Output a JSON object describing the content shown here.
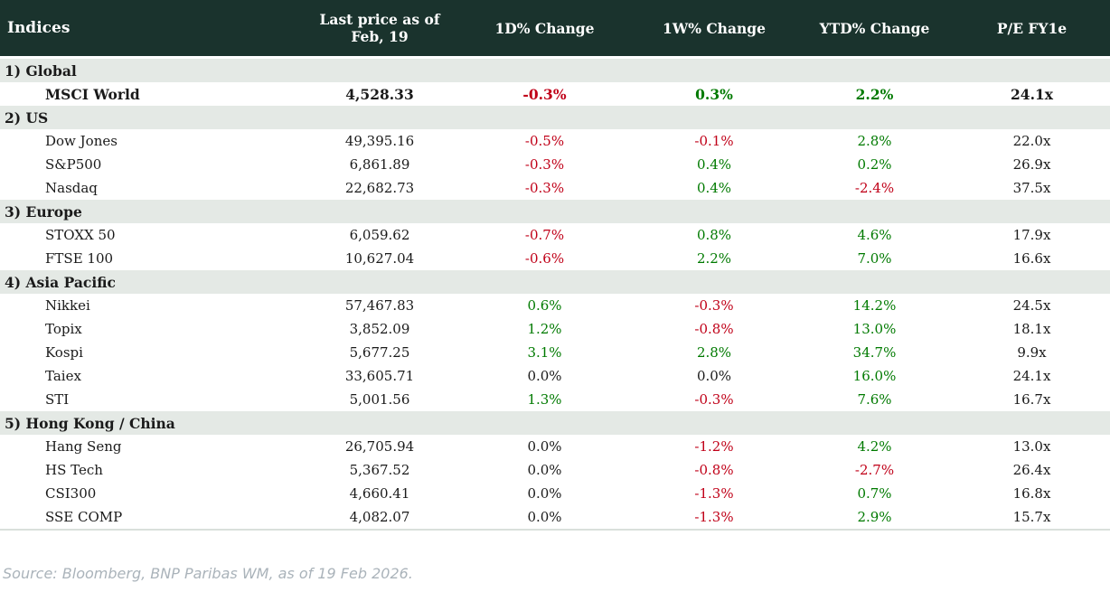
{
  "colors": {
    "header_bg": "#1a332d",
    "header_text": "#ffffff",
    "section_bg": "#e4e9e5",
    "positive": "#007a00",
    "negative": "#c00018",
    "neutral": "#1a1a1a",
    "text": "#1a1a1a",
    "footer_text": "#aab3ba",
    "table_border": "#d9e0db"
  },
  "chart_data": {
    "type": "table",
    "title": "Indices",
    "columns": [
      "Indices",
      "Last price as of Feb, 19",
      "1D% Change",
      "1W% Change",
      "YTD% Change",
      "P/E FY1e"
    ],
    "sections": [
      {
        "label": "1) Global",
        "rows": [
          {
            "name": "MSCI World",
            "last_price": "4,528.33",
            "d1": "-0.3%",
            "w1": "0.3%",
            "ytd": "2.2%",
            "pe": "24.1x",
            "bold": true
          }
        ]
      },
      {
        "label": "2) US",
        "rows": [
          {
            "name": "Dow Jones",
            "last_price": "49,395.16",
            "d1": "-0.5%",
            "w1": "-0.1%",
            "ytd": "2.8%",
            "pe": "22.0x"
          },
          {
            "name": "S&P500",
            "last_price": "6,861.89",
            "d1": "-0.3%",
            "w1": "0.4%",
            "ytd": "0.2%",
            "pe": "26.9x"
          },
          {
            "name": "Nasdaq",
            "last_price": "22,682.73",
            "d1": "-0.3%",
            "w1": "0.4%",
            "ytd": "-2.4%",
            "pe": "37.5x"
          }
        ]
      },
      {
        "label": "3) Europe",
        "rows": [
          {
            "name": "STOXX 50",
            "last_price": "6,059.62",
            "d1": "-0.7%",
            "w1": "0.8%",
            "ytd": "4.6%",
            "pe": "17.9x"
          },
          {
            "name": "FTSE 100",
            "last_price": "10,627.04",
            "d1": "-0.6%",
            "w1": "2.2%",
            "ytd": "7.0%",
            "pe": "16.6x"
          }
        ]
      },
      {
        "label": "4) Asia Pacific",
        "rows": [
          {
            "name": "Nikkei",
            "last_price": "57,467.83",
            "d1": "0.6%",
            "w1": "-0.3%",
            "ytd": "14.2%",
            "pe": "24.5x"
          },
          {
            "name": "Topix",
            "last_price": "3,852.09",
            "d1": "1.2%",
            "w1": "-0.8%",
            "ytd": "13.0%",
            "pe": "18.1x"
          },
          {
            "name": "Kospi",
            "last_price": "5,677.25",
            "d1": "3.1%",
            "w1": "2.8%",
            "ytd": "34.7%",
            "pe": "9.9x"
          },
          {
            "name": "Taiex",
            "last_price": "33,605.71",
            "d1": "0.0%",
            "w1": "0.0%",
            "ytd": "16.0%",
            "pe": "24.1x"
          },
          {
            "name": "STI",
            "last_price": "5,001.56",
            "d1": "1.3%",
            "w1": "-0.3%",
            "ytd": "7.6%",
            "pe": "16.7x"
          }
        ]
      },
      {
        "label": "5) Hong Kong / China",
        "rows": [
          {
            "name": "Hang Seng",
            "last_price": "26,705.94",
            "d1": "0.0%",
            "w1": "-1.2%",
            "ytd": "4.2%",
            "pe": "13.0x"
          },
          {
            "name": "HS Tech",
            "last_price": "5,367.52",
            "d1": "0.0%",
            "w1": "-0.8%",
            "ytd": "-2.7%",
            "pe": "26.4x"
          },
          {
            "name": "CSI300",
            "last_price": "4,660.41",
            "d1": "0.0%",
            "w1": "-1.3%",
            "ytd": "0.7%",
            "pe": "16.8x"
          },
          {
            "name": "SSE COMP",
            "last_price": "4,082.07",
            "d1": "0.0%",
            "w1": "-1.3%",
            "ytd": "2.9%",
            "pe": "15.7x"
          }
        ]
      }
    ]
  },
  "footer": {
    "source": "Source: Bloomberg, BNP Paribas WM, as of 19 Feb 2026."
  }
}
